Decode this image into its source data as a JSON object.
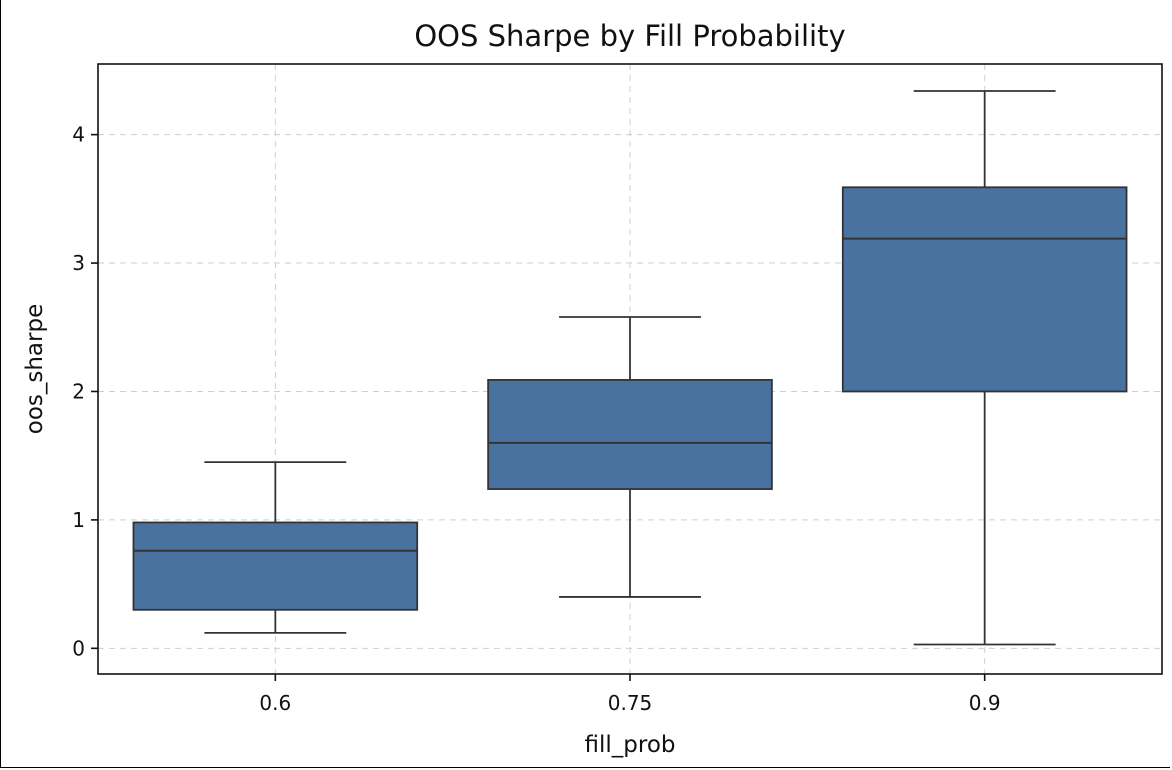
{
  "chart_data": {
    "type": "box",
    "title": "OOS Sharpe by Fill Probability",
    "xlabel": "fill_prob",
    "ylabel": "oos_sharpe",
    "categories": [
      "0.6",
      "0.75",
      "0.9"
    ],
    "boxes": [
      {
        "category": "0.6",
        "whislo": 0.12,
        "q1": 0.3,
        "med": 0.76,
        "q3": 0.98,
        "whishi": 1.45
      },
      {
        "category": "0.75",
        "whislo": 0.4,
        "q1": 1.24,
        "med": 1.6,
        "q3": 2.09,
        "whishi": 2.58
      },
      {
        "category": "0.9",
        "whislo": 0.03,
        "q1": 2.0,
        "med": 3.19,
        "q3": 3.59,
        "whishi": 4.34
      }
    ],
    "ylim": [
      -0.2,
      4.55
    ],
    "yticks": [
      0,
      1,
      2,
      3,
      4
    ],
    "grid": true,
    "box_color": "#4a72a0",
    "line_color": "#333333"
  }
}
